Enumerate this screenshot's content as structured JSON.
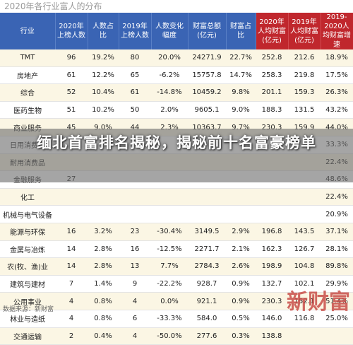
{
  "page": {
    "title": "2020年各行业富人的分布",
    "source": "数据来源：新财富",
    "logo_text": "新财富"
  },
  "overlay": {
    "headline": "缅北首富排名揭秘，揭秘前十名富豪榜单"
  },
  "table": {
    "headers": [
      "行业",
      "2020年上榜人数",
      "人数占比",
      "2019年上榜人数",
      "人数变化幅度",
      "财富总额(亿元)",
      "财富占比",
      "2020年人均财富(亿元)",
      "2019年人均财富(亿元)",
      "2019-2020人均财富增速"
    ],
    "rows": [
      [
        "TMT",
        "96",
        "19.2%",
        "80",
        "20.0%",
        "24271.9",
        "22.7%",
        "252.8",
        "212.6",
        "18.9%"
      ],
      [
        "房地产",
        "61",
        "12.2%",
        "65",
        "-6.2%",
        "15757.8",
        "14.7%",
        "258.3",
        "219.8",
        "17.5%"
      ],
      [
        "综合",
        "52",
        "10.4%",
        "61",
        "-14.8%",
        "10459.2",
        "9.8%",
        "201.1",
        "159.3",
        "26.3%"
      ],
      [
        "医药生物",
        "51",
        "10.2%",
        "50",
        "2.0%",
        "9605.1",
        "9.0%",
        "188.3",
        "131.5",
        "43.2%"
      ],
      [
        "商业服务",
        "45",
        "9.0%",
        "44",
        "2.3%",
        "10363.7",
        "9.7%",
        "230.3",
        "159.9",
        "44.0%"
      ],
      [
        "日用消费品",
        "",
        "",
        "",
        "",
        "",
        "",
        "",
        "",
        "33.3%"
      ],
      [
        "耐用消费品",
        "",
        "",
        "",
        "",
        "",
        "",
        "",
        "",
        "22.4%"
      ],
      [
        "金融服务",
        "27",
        "",
        "",
        "",
        "",
        "",
        "",
        "",
        "48.6%"
      ],
      [
        "化工",
        "",
        "",
        "",
        "",
        "",
        "",
        "",
        "",
        "22.4%"
      ],
      [
        "机械与电气设备",
        "",
        "",
        "",
        "",
        "",
        "",
        "",
        "",
        "20.9%"
      ],
      [
        "能源与环保",
        "16",
        "3.2%",
        "23",
        "-30.4%",
        "3149.5",
        "2.9%",
        "196.8",
        "143.5",
        "37.1%"
      ],
      [
        "金属与冶炼",
        "14",
        "2.8%",
        "16",
        "-12.5%",
        "2271.7",
        "2.1%",
        "162.3",
        "126.7",
        "28.1%"
      ],
      [
        "农(牧、渔)业",
        "14",
        "2.8%",
        "13",
        "7.7%",
        "2784.3",
        "2.6%",
        "198.9",
        "104.8",
        "89.8%"
      ],
      [
        "建筑与建材",
        "7",
        "1.4%",
        "9",
        "-22.2%",
        "928.7",
        "0.9%",
        "132.7",
        "102.1",
        "29.9%"
      ],
      [
        "公用事业",
        "4",
        "0.8%",
        "4",
        "0.0%",
        "921.1",
        "0.9%",
        "230.3",
        "152.1",
        "51.4%"
      ],
      [
        "林业与造纸",
        "4",
        "0.8%",
        "6",
        "-33.3%",
        "584.0",
        "0.5%",
        "146.0",
        "116.8",
        "25.0%"
      ],
      [
        "交通运输",
        "2",
        "0.4%",
        "4",
        "-50.0%",
        "277.6",
        "0.3%",
        "138.8",
        "",
        ""
      ]
    ]
  }
}
